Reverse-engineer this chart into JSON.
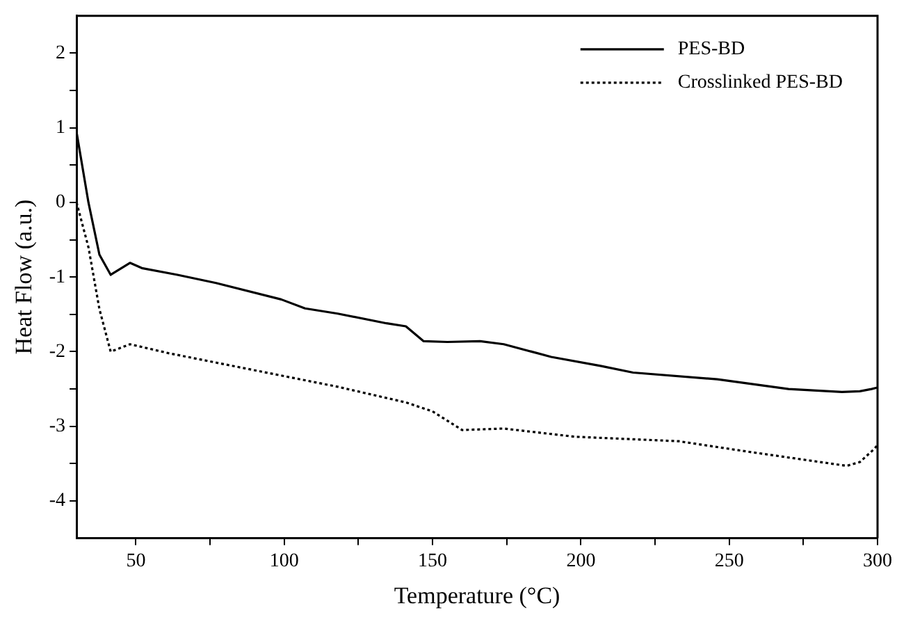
{
  "chart_data": {
    "type": "line",
    "xlabel": "Temperature (°C)",
    "ylabel": "Heat Flow (a.u.)",
    "xlim": [
      30,
      300
    ],
    "ylim": [
      -4.5,
      2.5
    ],
    "xticks": [
      50,
      {
        "value": 75,
        "label": null
      },
      100,
      {
        "value": 125,
        "label": null
      },
      150,
      {
        "value": 175,
        "label": null
      },
      200,
      {
        "value": 225,
        "label": null
      },
      250,
      {
        "value": 275,
        "label": null
      },
      300
    ],
    "yticks": [
      -4,
      {
        "value": -3.5,
        "label": null
      },
      -3,
      {
        "value": -2.5,
        "label": null
      },
      -2,
      {
        "value": -1.5,
        "label": null
      },
      -1,
      {
        "value": -0.5,
        "label": null
      },
      0,
      {
        "value": 0.5,
        "label": null
      },
      1,
      {
        "value": 1.5,
        "label": null
      },
      2
    ],
    "grid": false,
    "legend": "top right",
    "marker": "none",
    "series": [
      {
        "name": "PES-BD",
        "color": "#000000",
        "line_style": "solid",
        "x": [
          30,
          34,
          37.7,
          41.5,
          48,
          52,
          64,
          77,
          99,
          107,
          118,
          134.5,
          141,
          147,
          155,
          166,
          174,
          190,
          206.6,
          217.6,
          246,
          270,
          288,
          294,
          298,
          300
        ],
        "values": [
          0.94,
          0.0,
          -0.7,
          -0.97,
          -0.81,
          -0.88,
          -0.97,
          -1.08,
          -1.3,
          -1.42,
          -1.49,
          -1.62,
          -1.66,
          -1.86,
          -1.87,
          -1.86,
          -1.9,
          -2.07,
          -2.19,
          -2.28,
          -2.37,
          -2.5,
          -2.54,
          -2.53,
          -2.5,
          -2.48
        ]
      },
      {
        "name": "Crosslinked PES-BD",
        "color": "#000000",
        "line_style": "dotted",
        "x": [
          30,
          34,
          37.7,
          41.5,
          48,
          61,
          99,
          118,
          141,
          150,
          160,
          174,
          198,
          233,
          254.6,
          289.6,
          294,
          299,
          300
        ],
        "values": [
          0.0,
          -0.6,
          -1.43,
          -2.0,
          -1.9,
          -2.02,
          -2.32,
          -2.47,
          -2.68,
          -2.8,
          -3.05,
          -3.03,
          -3.14,
          -3.2,
          -3.33,
          -3.53,
          -3.48,
          -3.3,
          -3.25
        ]
      }
    ]
  }
}
